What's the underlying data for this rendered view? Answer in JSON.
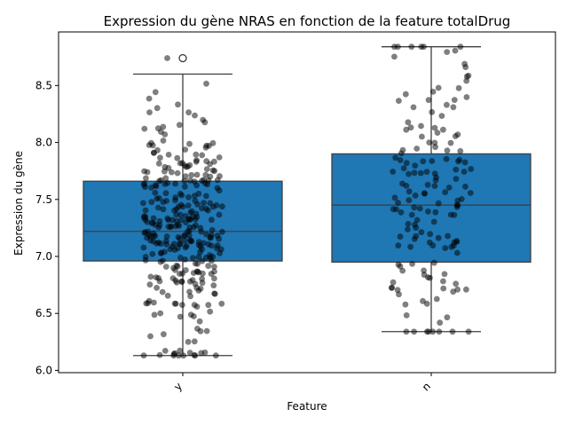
{
  "chart_data": {
    "type": "box",
    "title": "Expression du gène NRAS en fonction de la feature totalDrug",
    "xlabel": "Feature",
    "ylabel": "Expression du gène",
    "categories": [
      "y",
      "n"
    ],
    "ylim": [
      5.98,
      8.97
    ],
    "yticks": [
      6.0,
      6.5,
      7.0,
      7.5,
      8.0,
      8.5
    ],
    "ytick_labels": [
      "6.0",
      "6.5",
      "7.0",
      "7.5",
      "8.0",
      "8.5"
    ],
    "box_color": "#1f77b4",
    "point_color": "#000000",
    "grid": false,
    "legend": "none",
    "boxes": [
      {
        "category": "y",
        "whisker_low": 6.13,
        "q1": 6.96,
        "median": 7.22,
        "q3": 7.66,
        "whisker_high": 8.6,
        "outliers": [
          8.74
        ],
        "n_points": 330,
        "points_min": 6.13,
        "points_max": 8.74
      },
      {
        "category": "n",
        "whisker_low": 6.34,
        "q1": 6.95,
        "median": 7.45,
        "q3": 7.9,
        "whisker_high": 8.84,
        "outliers": [],
        "n_points": 160,
        "points_min": 6.34,
        "points_max": 8.84
      }
    ]
  }
}
